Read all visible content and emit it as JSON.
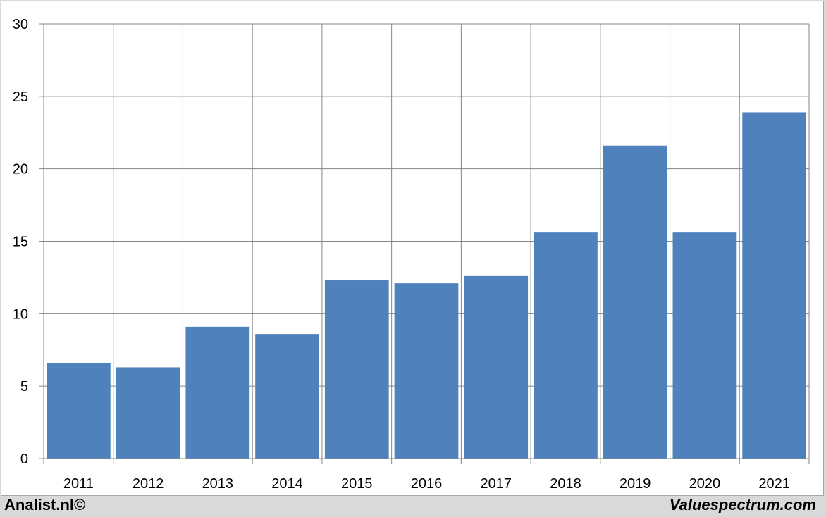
{
  "colors": {
    "bar": "#4f81bd",
    "grid": "#868686",
    "background": "#ffffff",
    "footer_bg": "#d9d9d9"
  },
  "footer": {
    "left": "Analist.nl©",
    "right": "Valuespectrum.com"
  },
  "chart_data": {
    "type": "bar",
    "title": "",
    "xlabel": "",
    "ylabel": "",
    "categories": [
      "2011",
      "2012",
      "2013",
      "2014",
      "2015",
      "2016",
      "2017",
      "2018",
      "2019",
      "2020",
      "2021"
    ],
    "values": [
      6.6,
      6.3,
      9.1,
      8.6,
      12.3,
      12.1,
      12.6,
      15.6,
      21.6,
      15.6,
      23.9
    ],
    "ylim": [
      0,
      30
    ],
    "yticks": [
      0,
      5,
      10,
      15,
      20,
      25,
      30
    ],
    "grid": true,
    "legend": "none"
  }
}
